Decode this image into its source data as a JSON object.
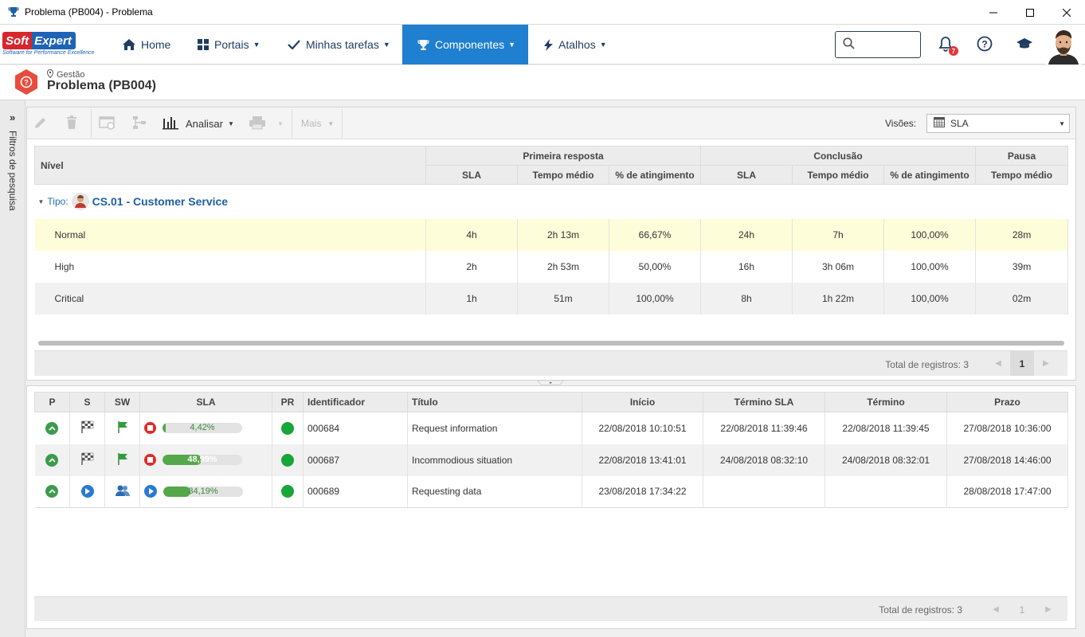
{
  "window": {
    "title": "Problema (PB004) - Problema",
    "icon": "trophy-icon"
  },
  "nav": {
    "logo_soft": "Soft",
    "logo_expert": "Expert",
    "logo_tagline": "Software for Performance Excellence",
    "items": [
      {
        "label": "Home",
        "icon": "home-icon"
      },
      {
        "label": "Portais",
        "icon": "grid-icon"
      },
      {
        "label": "Minhas tarefas",
        "icon": "check-icon"
      },
      {
        "label": "Componentes",
        "icon": "trophy-icon"
      },
      {
        "label": "Atalhos",
        "icon": "lightning-icon"
      }
    ],
    "notification_count": "7",
    "accent_color": "#1f7fd0"
  },
  "header": {
    "breadcrumb": "Gestão",
    "title": "Problema (PB004)"
  },
  "sidebar": {
    "filter_label": "Filtros de pesquisa"
  },
  "toolbar": {
    "analyze_label": "Analisar",
    "more_label": "Mais",
    "views_label": "Visões:",
    "views_value": "SLA"
  },
  "sla_table": {
    "headers": {
      "level": "Nível",
      "first_response": "Primeira resposta",
      "conclusion": "Conclusão",
      "pause": "Pausa",
      "sla": "SLA",
      "avg_time": "Tempo médio",
      "achievement": "% de atingimento"
    },
    "group": {
      "prefix": "Tipo:",
      "name": "CS.01 - Customer Service"
    },
    "rows": [
      {
        "level": "Normal",
        "fr_sla": "4h",
        "fr_avg": "2h 13m",
        "fr_pct": "66,67%",
        "c_sla": "24h",
        "c_avg": "7h",
        "c_pct": "100,00%",
        "p_avg": "28m"
      },
      {
        "level": "High",
        "fr_sla": "2h",
        "fr_avg": "2h 53m",
        "fr_pct": "50,00%",
        "c_sla": "16h",
        "c_avg": "3h 06m",
        "c_pct": "100,00%",
        "p_avg": "39m"
      },
      {
        "level": "Critical",
        "fr_sla": "1h",
        "fr_avg": "51m",
        "fr_pct": "100,00%",
        "c_sla": "8h",
        "c_avg": "1h 22m",
        "c_pct": "100,00%",
        "p_avg": "02m"
      }
    ],
    "total_label": "Total de registros: 3",
    "page": "1"
  },
  "list_table": {
    "headers": {
      "p": "P",
      "s": "S",
      "sw": "SW",
      "sla": "SLA",
      "pr": "PR",
      "id": "Identificador",
      "title": "Título",
      "start": "Início",
      "sla_end": "Término SLA",
      "end": "Término",
      "deadline": "Prazo"
    },
    "rows": [
      {
        "status": "finished",
        "sla_pct": "4,42%",
        "sla_fraction": 0.0442,
        "id": "000684",
        "title": "Request information",
        "start": "22/08/2018 10:10:51",
        "sla_end": "22/08/2018 11:39:46",
        "end": "22/08/2018 11:39:45",
        "deadline": "27/08/2018 10:36:00"
      },
      {
        "status": "finished",
        "sla_pct": "48,99%",
        "sla_fraction": 0.4899,
        "id": "000687",
        "title": "Incommodious situation",
        "start": "22/08/2018 13:41:01",
        "sla_end": "24/08/2018 08:32:10",
        "end": "24/08/2018 08:32:01",
        "deadline": "27/08/2018 14:46:00"
      },
      {
        "status": "running",
        "sla_pct": "34,19%",
        "sla_fraction": 0.3419,
        "id": "000689",
        "title": "Requesting data",
        "start": "23/08/2018 17:34:22",
        "sla_end": "",
        "end": "",
        "deadline": "28/08/2018 17:47:00"
      }
    ],
    "total_label": "Total de registros: 3",
    "page": "1"
  }
}
